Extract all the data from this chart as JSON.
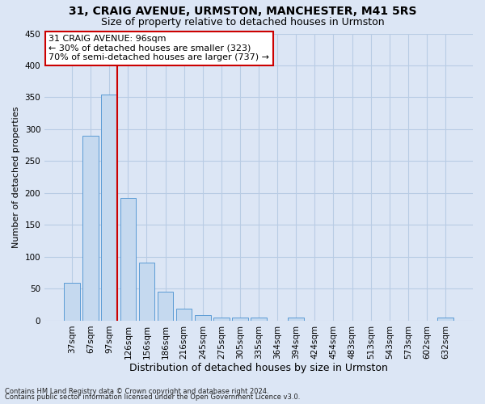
{
  "title": "31, CRAIG AVENUE, URMSTON, MANCHESTER, M41 5RS",
  "subtitle": "Size of property relative to detached houses in Urmston",
  "xlabel": "Distribution of detached houses by size in Urmston",
  "ylabel": "Number of detached properties",
  "footer1": "Contains HM Land Registry data © Crown copyright and database right 2024.",
  "footer2": "Contains public sector information licensed under the Open Government Licence v3.0.",
  "categories": [
    "37sqm",
    "67sqm",
    "97sqm",
    "126sqm",
    "156sqm",
    "186sqm",
    "216sqm",
    "245sqm",
    "275sqm",
    "305sqm",
    "335sqm",
    "364sqm",
    "394sqm",
    "424sqm",
    "454sqm",
    "483sqm",
    "513sqm",
    "543sqm",
    "573sqm",
    "602sqm",
    "632sqm"
  ],
  "values": [
    59,
    290,
    355,
    192,
    91,
    46,
    19,
    9,
    5,
    5,
    5,
    0,
    5,
    0,
    0,
    0,
    0,
    0,
    0,
    0,
    5
  ],
  "bar_color": "#c5d9ef",
  "bar_edge_color": "#5b9bd5",
  "highlight_bar_index": 2,
  "highlight_line_color": "#cc0000",
  "annotation_text": "31 CRAIG AVENUE: 96sqm\n← 30% of detached houses are smaller (323)\n70% of semi-detached houses are larger (737) →",
  "annotation_box_color": "#ffffff",
  "annotation_box_edge_color": "#cc0000",
  "ylim": [
    0,
    450
  ],
  "yticks": [
    0,
    50,
    100,
    150,
    200,
    250,
    300,
    350,
    400,
    450
  ],
  "background_color": "#dce6f5",
  "grid_color": "#b8cce4",
  "title_fontsize": 10,
  "subtitle_fontsize": 9,
  "xlabel_fontsize": 9,
  "ylabel_fontsize": 8,
  "tick_fontsize": 7.5,
  "annotation_fontsize": 8,
  "footer_fontsize": 6
}
